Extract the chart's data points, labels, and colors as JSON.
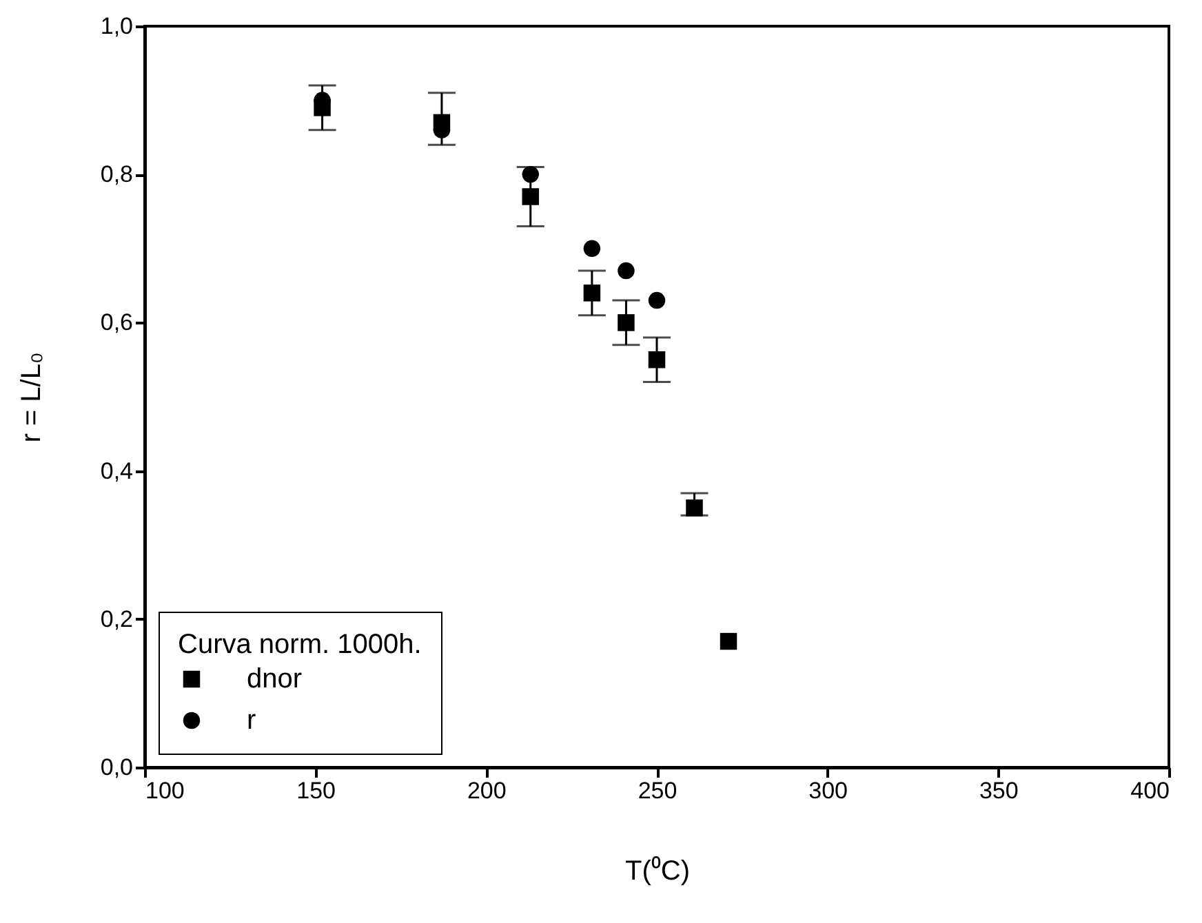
{
  "chart_data": {
    "type": "scatter",
    "xlabel": "T(⁰C)",
    "ylabel": "r = L/L₀",
    "legend_title": "Curva norm. 1000h.",
    "legend": "bottom left",
    "xlim": [
      100,
      400
    ],
    "xticks": [
      100,
      150,
      200,
      250,
      300,
      350,
      400
    ],
    "ylim": [
      0,
      1
    ],
    "yticks": [
      {
        "value": 0,
        "label": "0,0"
      },
      {
        "value": 0.2,
        "label": "0,2"
      },
      {
        "value": 0.4,
        "label": "0,4"
      },
      {
        "value": 0.6,
        "label": "0,6"
      },
      {
        "value": 0.8,
        "label": "0,8"
      },
      {
        "value": 1,
        "label": "1,0"
      }
    ],
    "series": [
      {
        "name": "dnor",
        "color": "#000000",
        "marker": "square",
        "x": [
          152,
          187,
          213,
          231,
          241,
          250,
          261,
          271
        ],
        "values": [
          0.89,
          0.87,
          0.77,
          0.64,
          0.6,
          0.55,
          0.35,
          0.17
        ],
        "errors": [
          [
            0.86,
            0.92
          ],
          [
            0.84,
            0.91
          ],
          [
            0.73,
            0.81
          ],
          [
            0.61,
            0.67
          ],
          [
            0.57,
            0.63
          ],
          [
            0.52,
            0.58
          ],
          [
            0.34,
            0.37
          ],
          null
        ]
      },
      {
        "name": "r",
        "color": "#000000",
        "marker": "circle",
        "x": [
          152,
          187,
          213,
          231,
          241,
          250
        ],
        "values": [
          0.9,
          0.86,
          0.8,
          0.7,
          0.67,
          0.63
        ]
      }
    ]
  }
}
